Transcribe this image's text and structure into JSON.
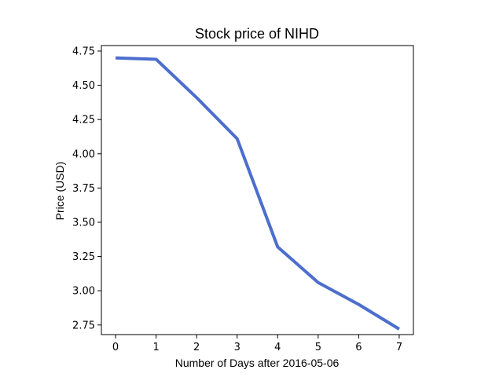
{
  "chart_data": {
    "type": "line",
    "title": "Stock price of NIHD",
    "xlabel": "Number of Days after 2016-05-06",
    "ylabel": "Price (USD)",
    "x": [
      0,
      1,
      2,
      3,
      4,
      5,
      6,
      7
    ],
    "series": [
      {
        "values": [
          4.7,
          4.69,
          4.41,
          4.11,
          3.32,
          3.06,
          2.9,
          2.72
        ],
        "color": "#4c6ecd"
      }
    ],
    "xlim": [
      -0.35,
      7.35
    ],
    "ylim": [
      2.68,
      4.79
    ],
    "xticks": [
      0,
      1,
      2,
      3,
      4,
      5,
      6,
      7
    ],
    "xtick_labels": [
      "0",
      "1",
      "2",
      "3",
      "4",
      "5",
      "6",
      "7"
    ],
    "yticks": [
      2.75,
      3.0,
      3.25,
      3.5,
      3.75,
      4.0,
      4.25,
      4.5,
      4.75
    ],
    "ytick_labels": [
      "2.75",
      "3.00",
      "3.25",
      "3.50",
      "3.75",
      "4.00",
      "4.25",
      "4.50",
      "4.75"
    ],
    "grid": false,
    "legend": "none"
  }
}
